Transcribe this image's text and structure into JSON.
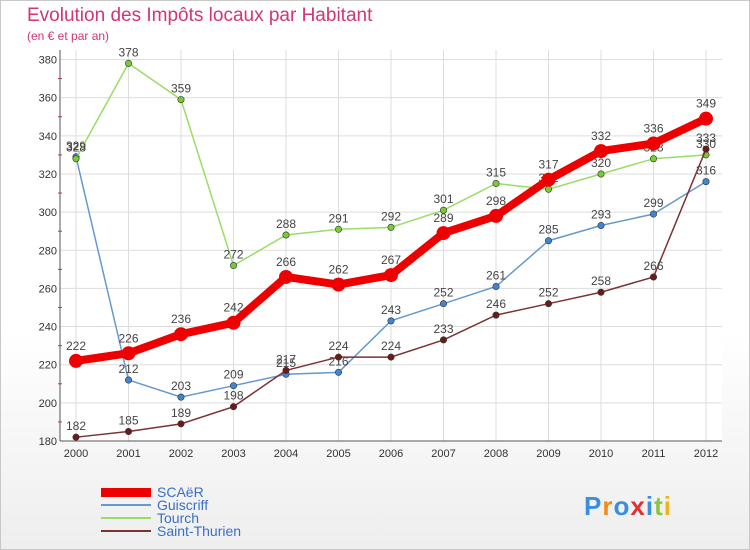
{
  "chart_data": {
    "type": "line",
    "title": "Evolution des Impôts locaux par Habitant",
    "subtitle": "(en € et par an)",
    "xlabel": "",
    "ylabel": "",
    "categories": [
      "2000",
      "2001",
      "2002",
      "2003",
      "2004",
      "2005",
      "2006",
      "2007",
      "2008",
      "2009",
      "2010",
      "2011",
      "2012"
    ],
    "ylim": [
      180,
      385
    ],
    "yticks": [
      180,
      200,
      220,
      240,
      260,
      280,
      300,
      320,
      340,
      360,
      380
    ],
    "grid": true,
    "legend_position": "bottom-left",
    "series": [
      {
        "name": "SCAëR",
        "color": "#ee0000",
        "emphasis": true,
        "values": [
          222,
          226,
          236,
          242,
          266,
          262,
          267,
          289,
          298,
          317,
          332,
          336,
          349
        ]
      },
      {
        "name": "Guiscriff",
        "color": "#6699cc",
        "marker": "#3d86d6",
        "values": [
          329,
          212,
          203,
          209,
          215,
          216,
          243,
          252,
          261,
          285,
          293,
          299,
          316
        ]
      },
      {
        "name": "Tourch",
        "color": "#99dd66",
        "marker": "#77cc33",
        "values": [
          328,
          378,
          359,
          272,
          288,
          291,
          292,
          301,
          315,
          312,
          320,
          328,
          330
        ]
      },
      {
        "name": "Saint-Thurien",
        "color": "#7a3333",
        "marker": "#6b1a1a",
        "values": [
          182,
          185,
          189,
          198,
          217,
          224,
          224,
          233,
          246,
          252,
          258,
          266,
          333
        ]
      }
    ]
  },
  "brand": {
    "letters": [
      "P",
      "r",
      "o",
      "x",
      "i",
      "t",
      "i"
    ],
    "colors": [
      "#3b8de0",
      "#f08a1c",
      "#3b8de0",
      "#e23030",
      "#3b8de0",
      "#8cc63f",
      "#f0b21c"
    ]
  }
}
